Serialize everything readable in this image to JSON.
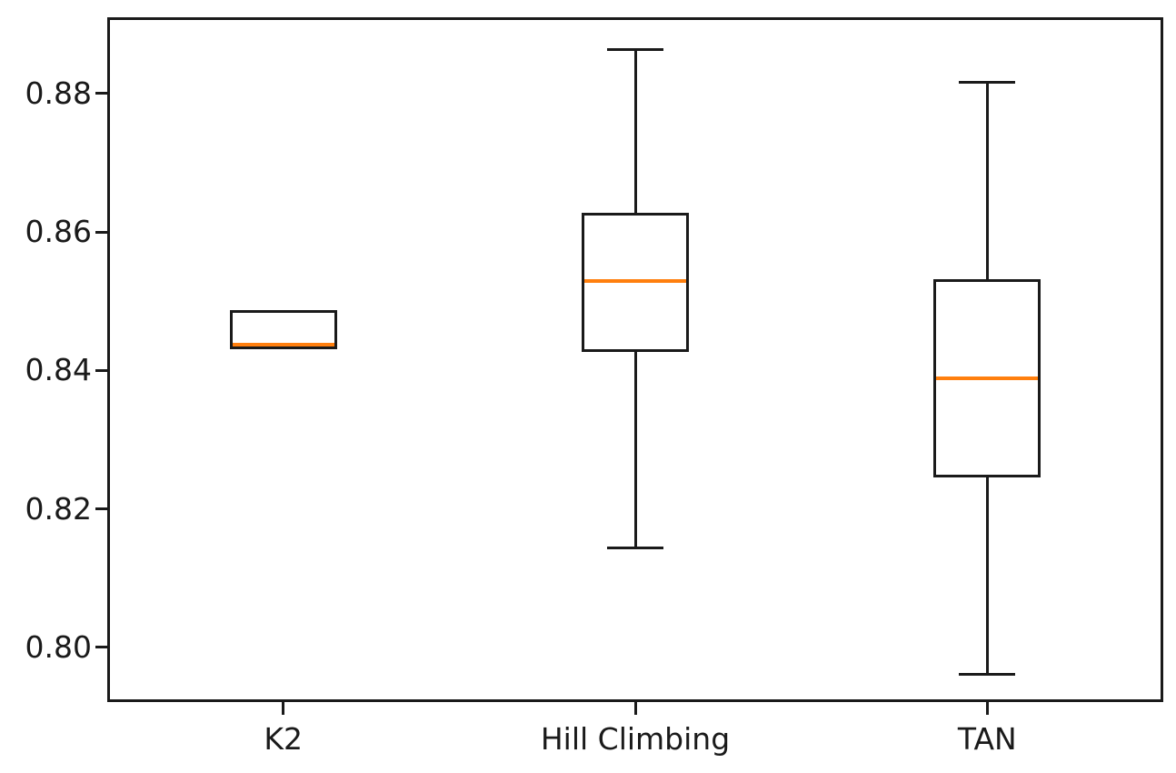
{
  "chart_data": {
    "type": "boxplot",
    "title": "",
    "xlabel": "",
    "ylabel": "",
    "grid": false,
    "legend": "none",
    "categories": [
      "K2",
      "Hill Climbing",
      "TAN"
    ],
    "series": [
      {
        "name": "K2",
        "min": 0.8433,
        "q1": 0.8433,
        "median": 0.8437,
        "q3": 0.8485,
        "max": 0.8485,
        "outliers": []
      },
      {
        "name": "Hill Climbing",
        "min": 0.8143,
        "q1": 0.8429,
        "median": 0.8529,
        "q3": 0.8626,
        "max": 0.8863,
        "outliers": []
      },
      {
        "name": "TAN",
        "min": 0.7961,
        "q1": 0.8247,
        "median": 0.8388,
        "q3": 0.853,
        "max": 0.8816,
        "outliers": []
      }
    ],
    "ytick_labels": [
      "0.80",
      "0.82",
      "0.84",
      "0.86",
      "0.88"
    ],
    "ytick_values": [
      0.8,
      0.82,
      0.84,
      0.86,
      0.88
    ],
    "ylim": [
      0.7921,
      0.891
    ],
    "colors": {
      "box_line": "#1a1a1a",
      "median": "#ff7f0e",
      "background": "#ffffff",
      "text": "#1a1a1a"
    }
  }
}
